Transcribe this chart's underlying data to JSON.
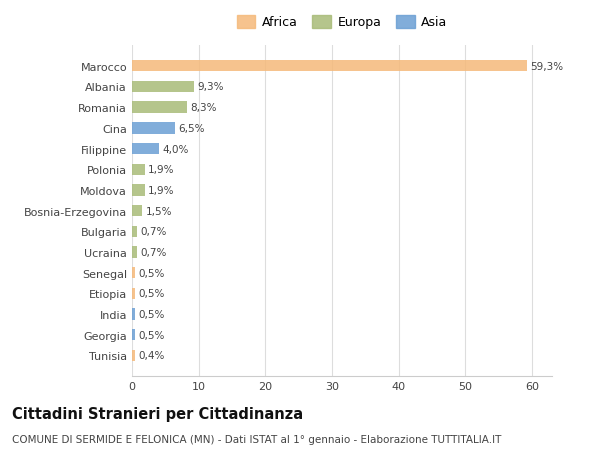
{
  "categories": [
    "Tunisia",
    "Georgia",
    "India",
    "Etiopia",
    "Senegal",
    "Ucraina",
    "Bulgaria",
    "Bosnia-Erzegovina",
    "Moldova",
    "Polonia",
    "Filippine",
    "Cina",
    "Romania",
    "Albania",
    "Marocco"
  ],
  "values": [
    0.4,
    0.5,
    0.5,
    0.5,
    0.5,
    0.7,
    0.7,
    1.5,
    1.9,
    1.9,
    4.0,
    6.5,
    8.3,
    9.3,
    59.3
  ],
  "labels": [
    "0,4%",
    "0,5%",
    "0,5%",
    "0,5%",
    "0,5%",
    "0,7%",
    "0,7%",
    "1,5%",
    "1,9%",
    "1,9%",
    "4,0%",
    "6,5%",
    "8,3%",
    "9,3%",
    "59,3%"
  ],
  "colors": [
    "#f5b97a",
    "#6b9fd4",
    "#6b9fd4",
    "#f5b97a",
    "#f5b97a",
    "#a8bb78",
    "#a8bb78",
    "#a8bb78",
    "#a8bb78",
    "#a8bb78",
    "#6b9fd4",
    "#6b9fd4",
    "#a8bb78",
    "#a8bb78",
    "#f5b97a"
  ],
  "continent": [
    "Africa",
    "Asia",
    "Asia",
    "Africa",
    "Africa",
    "Europa",
    "Europa",
    "Europa",
    "Europa",
    "Europa",
    "Asia",
    "Asia",
    "Europa",
    "Europa",
    "Africa"
  ],
  "legend_labels": [
    "Africa",
    "Europa",
    "Asia"
  ],
  "legend_colors": [
    "#f5b97a",
    "#a8bb78",
    "#6b9fd4"
  ],
  "title": "Cittadini Stranieri per Cittadinanza",
  "subtitle": "COMUNE DI SERMIDE E FELONICA (MN) - Dati ISTAT al 1° gennaio - Elaborazione TUTTITALIA.IT",
  "xlim": [
    0,
    63
  ],
  "xticks": [
    0,
    10,
    20,
    30,
    40,
    50,
    60
  ],
  "bg_color": "#ffffff",
  "plot_bg_color": "#ffffff",
  "grid_color": "#dddddd",
  "bar_height": 0.55,
  "title_fontsize": 10.5,
  "subtitle_fontsize": 7.5,
  "label_fontsize": 7.5,
  "tick_fontsize": 8,
  "legend_fontsize": 9
}
